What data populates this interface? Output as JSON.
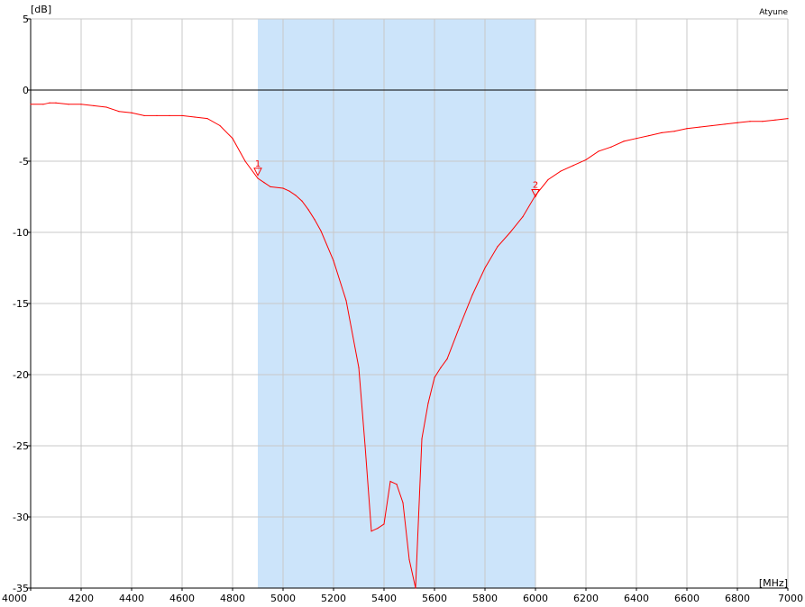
{
  "chart_data": {
    "type": "line",
    "title": "Atyune",
    "x_unit": "[MHz]",
    "y_unit": "[dB]",
    "xlim": [
      4000,
      7000
    ],
    "ylim": [
      -35,
      5
    ],
    "x_ticks": [
      4000,
      4200,
      4400,
      4600,
      4800,
      5000,
      5200,
      5400,
      5600,
      5800,
      6000,
      6200,
      6400,
      6600,
      6800,
      7000
    ],
    "y_ticks": [
      5,
      0,
      -5,
      -10,
      -15,
      -20,
      -25,
      -30,
      -35
    ],
    "y_tick_labels": [
      "5",
      "0",
      "-5",
      "-10",
      "-15",
      "-20",
      "-25",
      "-30",
      "-35"
    ],
    "grid": true,
    "zero_line": 0,
    "band": {
      "from": 4900,
      "to": 6000,
      "color": "#cce4fa"
    },
    "series_color": "#ff0000",
    "series": [
      {
        "x": [
          4000,
          4050,
          4075,
          4100,
          4150,
          4200,
          4250,
          4300,
          4350,
          4400,
          4450,
          4500,
          4550,
          4600,
          4650,
          4700,
          4750,
          4800,
          4850,
          4900,
          4925,
          4950,
          5000,
          5025,
          5050,
          5075,
          5100,
          5125,
          5150,
          5200,
          5250,
          5300,
          5325,
          5350,
          5375,
          5400,
          5425,
          5450,
          5475,
          5500,
          5525,
          5550,
          5575,
          5600,
          5625,
          5650,
          5700,
          5750,
          5800,
          5850,
          5900,
          5950,
          6000,
          6050,
          6100,
          6150,
          6200,
          6250,
          6300,
          6350,
          6400,
          6450,
          6500,
          6550,
          6600,
          6650,
          6700,
          6750,
          6800,
          6850,
          6900,
          6950,
          7000
        ],
        "values": [
          -1.0,
          -1.0,
          -0.9,
          -0.9,
          -1.0,
          -1.0,
          -1.1,
          -1.2,
          -1.5,
          -1.6,
          -1.8,
          -1.8,
          -1.8,
          -1.8,
          -1.9,
          -2.0,
          -2.5,
          -3.4,
          -5.0,
          -6.2,
          -6.5,
          -6.8,
          -6.9,
          -7.1,
          -7.4,
          -7.8,
          -8.4,
          -9.1,
          -9.9,
          -12.0,
          -14.8,
          -19.5,
          -25.0,
          -31.0,
          -30.8,
          -30.5,
          -27.5,
          -27.7,
          -29.0,
          -33.0,
          -35.0,
          -24.5,
          -22.0,
          -20.2,
          -19.5,
          -18.9,
          -16.6,
          -14.4,
          -12.5,
          -11.0,
          -10.0,
          -8.9,
          -7.4,
          -6.3,
          -5.7,
          -5.3,
          -4.9,
          -4.3,
          -4.0,
          -3.6,
          -3.4,
          -3.2,
          -3.0,
          -2.9,
          -2.7,
          -2.6,
          -2.5,
          -2.4,
          -2.3,
          -2.2,
          -2.2,
          -2.1,
          -2.0
        ]
      }
    ],
    "markers": [
      {
        "label": "1",
        "x": 4900,
        "y": -6.0
      },
      {
        "label": "2",
        "x": 6000,
        "y": -7.5
      }
    ]
  }
}
